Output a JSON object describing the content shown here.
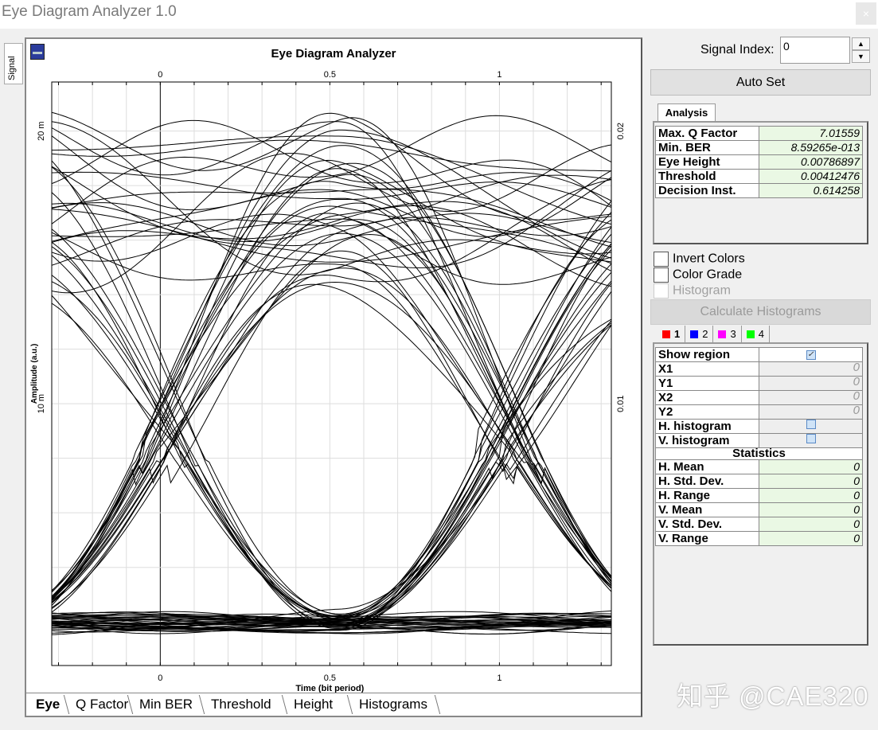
{
  "window": {
    "title": "Eye Diagram Analyzer 1.0",
    "close": "×"
  },
  "side_tab": "Signal",
  "chart_panel": {
    "title": "Eye Diagram Analyzer",
    "tabs": [
      "Eye",
      "Q Factor",
      "Min BER",
      "Threshold",
      "Height",
      "Histograms"
    ],
    "active_tab": "Eye"
  },
  "chart_data": {
    "type": "line",
    "title": "Eye Diagram Analyzer",
    "xlabel": "Time (bit period)",
    "ylabel": "Amplitude (a.u.)",
    "xlim": [
      -0.32,
      1.33
    ],
    "ylim": [
      0.0004,
      0.0218
    ],
    "x_ticks": [
      {
        "v": 0,
        "label": "0"
      },
      {
        "v": 0.5,
        "label": "0.5"
      },
      {
        "v": 1,
        "label": "1"
      }
    ],
    "y_ticks_left": [
      {
        "v": 0.02,
        "label": "20 m"
      },
      {
        "v": 0.01,
        "label": "10 m"
      }
    ],
    "y_ticks_right": [
      {
        "v": 0.02,
        "label": "0.02"
      },
      {
        "v": 0.01,
        "label": "0.01"
      }
    ],
    "grid": true,
    "line_color": "#000000"
  },
  "controls": {
    "signal_index_label": "Signal Index:",
    "signal_index_value": "0",
    "spin_up": "▲",
    "spin_down": "▼",
    "auto_set": "Auto Set",
    "analysis_tab": "Analysis",
    "analysis": [
      {
        "k": "Max. Q Factor",
        "v": "7.01559"
      },
      {
        "k": "Min. BER",
        "v": "8.59265e-013"
      },
      {
        "k": "Eye Height",
        "v": "0.00786897"
      },
      {
        "k": "Threshold",
        "v": "0.00412476"
      },
      {
        "k": "Decision Inst.",
        "v": "0.614258"
      }
    ],
    "invert_colors": "Invert Colors",
    "color_grade": "Color Grade",
    "histogram": "Histogram",
    "calc_histograms": "Calculate Histograms",
    "region_tabs": [
      {
        "label": "1",
        "color": "#ff0000"
      },
      {
        "label": "2",
        "color": "#0000ff"
      },
      {
        "label": "3",
        "color": "#ff00ff"
      },
      {
        "label": "4",
        "color": "#00ff00"
      }
    ],
    "region": [
      {
        "k": "Show region",
        "type": "check",
        "checked": true
      },
      {
        "k": "X1",
        "v": "0"
      },
      {
        "k": "Y1",
        "v": "0"
      },
      {
        "k": "X2",
        "v": "0"
      },
      {
        "k": "Y2",
        "v": "0"
      },
      {
        "k": "H. histogram",
        "type": "check",
        "checked": false
      },
      {
        "k": "V. histogram",
        "type": "check",
        "checked": false
      }
    ],
    "statistics_header": "Statistics",
    "statistics": [
      {
        "k": "H. Mean",
        "v": "0"
      },
      {
        "k": "H. Std. Dev.",
        "v": "0"
      },
      {
        "k": "H. Range",
        "v": "0"
      },
      {
        "k": "V. Mean",
        "v": "0"
      },
      {
        "k": "V. Std. Dev.",
        "v": "0"
      },
      {
        "k": "V. Range",
        "v": "0"
      }
    ]
  },
  "watermark": "知乎 @CAE320"
}
